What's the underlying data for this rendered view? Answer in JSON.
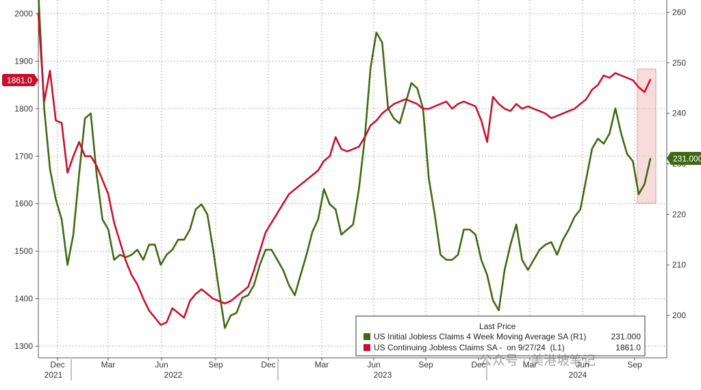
{
  "chart_data": {
    "type": "line",
    "grid": true,
    "legend_position": "bottom-right",
    "x_ticks": [
      "Dec",
      "Mar",
      "Jun",
      "Sep",
      "Dec",
      "Mar",
      "Jun",
      "Sep",
      "Dec",
      "Mar",
      "Jun",
      "Sep"
    ],
    "x_year_labels": [
      "2021",
      "2022",
      "2023",
      "2024"
    ],
    "left_axis": {
      "ticks": [
        1300,
        1400,
        1500,
        1600,
        1700,
        1800,
        1900,
        2000
      ],
      "range": [
        1283,
        2030
      ]
    },
    "right_axis": {
      "ticks": [
        200,
        210,
        220,
        230,
        240,
        250,
        260
      ],
      "range": [
        193.7,
        262.5
      ]
    },
    "legend_title": "Last Price",
    "series": [
      {
        "name": "US Initial Jobless Claims 4 Week Moving Average SA (R1)",
        "last_value_text": "231.000",
        "axis": "right",
        "color": "#3e6a12",
        "points": [
          [
            0,
            264
          ],
          [
            1,
            241
          ],
          [
            2,
            229
          ],
          [
            3,
            223
          ],
          [
            4,
            219
          ],
          [
            5,
            210
          ],
          [
            6,
            216
          ],
          [
            7,
            228
          ],
          [
            8,
            239
          ],
          [
            9,
            240
          ],
          [
            10,
            228
          ],
          [
            11,
            219
          ],
          [
            12,
            217
          ],
          [
            13,
            211
          ],
          [
            14,
            212
          ],
          [
            15,
            211.5
          ],
          [
            16,
            212
          ],
          [
            17,
            213
          ],
          [
            18,
            211
          ],
          [
            19,
            214
          ],
          [
            20,
            214
          ],
          [
            21,
            210
          ],
          [
            22,
            212
          ],
          [
            23,
            213
          ],
          [
            24,
            215
          ],
          [
            25,
            215
          ],
          [
            26,
            217
          ],
          [
            27,
            221
          ],
          [
            28,
            222
          ],
          [
            29,
            220
          ],
          [
            30,
            213
          ],
          [
            31,
            205
          ],
          [
            32,
            197.5
          ],
          [
            33,
            200
          ],
          [
            34,
            200.5
          ],
          [
            35,
            203.5
          ],
          [
            36,
            204
          ],
          [
            37,
            206
          ],
          [
            38,
            210
          ],
          [
            39,
            213
          ],
          [
            40,
            213
          ],
          [
            41,
            211
          ],
          [
            42,
            209
          ],
          [
            43,
            206
          ],
          [
            44,
            204
          ],
          [
            45,
            208
          ],
          [
            46,
            212
          ],
          [
            47,
            216.5
          ],
          [
            48,
            219
          ],
          [
            49,
            225
          ],
          [
            50,
            222
          ],
          [
            51,
            221
          ],
          [
            52,
            216
          ],
          [
            53,
            217
          ],
          [
            54,
            218
          ],
          [
            55,
            225
          ],
          [
            56,
            235
          ],
          [
            57,
            249
          ],
          [
            58,
            256
          ],
          [
            59,
            254
          ],
          [
            60,
            241
          ],
          [
            61,
            239
          ],
          [
            62,
            238
          ],
          [
            63,
            242
          ],
          [
            64,
            246
          ],
          [
            65,
            245
          ],
          [
            66,
            241
          ],
          [
            67,
            227
          ],
          [
            68,
            220
          ],
          [
            69,
            212
          ],
          [
            70,
            211
          ],
          [
            71,
            211
          ],
          [
            72,
            212
          ],
          [
            73,
            217
          ],
          [
            74,
            217
          ],
          [
            75,
            216
          ],
          [
            76,
            211
          ],
          [
            77,
            208
          ],
          [
            78,
            203
          ],
          [
            79,
            201
          ],
          [
            80,
            209
          ],
          [
            81,
            214
          ],
          [
            82,
            218
          ],
          [
            83,
            211
          ],
          [
            84,
            209
          ],
          [
            85,
            211
          ],
          [
            86,
            213
          ],
          [
            87,
            214
          ],
          [
            88,
            214.5
          ],
          [
            89,
            212
          ],
          [
            90,
            215
          ],
          [
            91,
            217
          ],
          [
            92,
            219.5
          ],
          [
            93,
            221
          ],
          [
            94,
            227
          ],
          [
            95,
            233
          ],
          [
            96,
            235
          ],
          [
            97,
            234
          ],
          [
            98,
            236
          ],
          [
            99,
            241
          ],
          [
            100,
            236
          ],
          [
            101,
            232
          ],
          [
            102,
            230.5
          ],
          [
            103,
            224
          ],
          [
            104,
            226
          ],
          [
            105,
            231
          ]
        ]
      },
      {
        "name": "US Continuing Jobless Claims SA -  on 9/27/24  (L1)",
        "last_value_text": "1861.0",
        "axis": "left",
        "color": "#c8102e",
        "points": [
          [
            0,
            2000
          ],
          [
            1,
            1815
          ],
          [
            2,
            1880
          ],
          [
            3,
            1775
          ],
          [
            4,
            1770
          ],
          [
            5,
            1665
          ],
          [
            6,
            1700
          ],
          [
            7,
            1730
          ],
          [
            8,
            1700
          ],
          [
            9,
            1700
          ],
          [
            10,
            1680
          ],
          [
            11,
            1650
          ],
          [
            12,
            1620
          ],
          [
            13,
            1560
          ],
          [
            14,
            1520
          ],
          [
            15,
            1480
          ],
          [
            16,
            1450
          ],
          [
            17,
            1430
          ],
          [
            18,
            1400
          ],
          [
            19,
            1375
          ],
          [
            20,
            1360
          ],
          [
            21,
            1345
          ],
          [
            22,
            1350
          ],
          [
            23,
            1380
          ],
          [
            24,
            1370
          ],
          [
            25,
            1360
          ],
          [
            26,
            1395
          ],
          [
            27,
            1410
          ],
          [
            28,
            1420
          ],
          [
            29,
            1410
          ],
          [
            30,
            1400
          ],
          [
            31,
            1395
          ],
          [
            32,
            1390
          ],
          [
            33,
            1395
          ],
          [
            34,
            1405
          ],
          [
            35,
            1415
          ],
          [
            36,
            1425
          ],
          [
            37,
            1460
          ],
          [
            38,
            1500
          ],
          [
            39,
            1540
          ],
          [
            40,
            1560
          ],
          [
            41,
            1580
          ],
          [
            42,
            1600
          ],
          [
            43,
            1620
          ],
          [
            44,
            1630
          ],
          [
            45,
            1640
          ],
          [
            46,
            1650
          ],
          [
            47,
            1660
          ],
          [
            48,
            1670
          ],
          [
            49,
            1690
          ],
          [
            50,
            1700
          ],
          [
            51,
            1740
          ],
          [
            52,
            1715
          ],
          [
            53,
            1710
          ],
          [
            54,
            1715
          ],
          [
            55,
            1720
          ],
          [
            56,
            1740
          ],
          [
            57,
            1765
          ],
          [
            58,
            1775
          ],
          [
            59,
            1790
          ],
          [
            60,
            1800
          ],
          [
            61,
            1810
          ],
          [
            62,
            1815
          ],
          [
            63,
            1820
          ],
          [
            64,
            1815
          ],
          [
            65,
            1810
          ],
          [
            66,
            1800
          ],
          [
            67,
            1800
          ],
          [
            68,
            1805
          ],
          [
            69,
            1810
          ],
          [
            70,
            1815
          ],
          [
            71,
            1800
          ],
          [
            72,
            1810
          ],
          [
            73,
            1815
          ],
          [
            74,
            1810
          ],
          [
            75,
            1805
          ],
          [
            76,
            1775
          ],
          [
            77,
            1730
          ],
          [
            78,
            1825
          ],
          [
            79,
            1810
          ],
          [
            80,
            1800
          ],
          [
            81,
            1795
          ],
          [
            82,
            1810
          ],
          [
            83,
            1800
          ],
          [
            84,
            1805
          ],
          [
            85,
            1800
          ],
          [
            86,
            1795
          ],
          [
            87,
            1790
          ],
          [
            88,
            1780
          ],
          [
            89,
            1785
          ],
          [
            90,
            1790
          ],
          [
            91,
            1795
          ],
          [
            92,
            1800
          ],
          [
            93,
            1810
          ],
          [
            94,
            1820
          ],
          [
            95,
            1840
          ],
          [
            96,
            1850
          ],
          [
            97,
            1870
          ],
          [
            98,
            1865
          ],
          [
            99,
            1875
          ],
          [
            100,
            1870
          ],
          [
            101,
            1865
          ],
          [
            102,
            1860
          ],
          [
            103,
            1845
          ],
          [
            104,
            1835
          ],
          [
            105,
            1861
          ]
        ]
      }
    ]
  },
  "colors": {
    "initial": "#3e6a12",
    "continuing": "#c8102e",
    "highlight": "#f2c0c0"
  },
  "watermark_text": "公众号 · 美港坡笔记"
}
